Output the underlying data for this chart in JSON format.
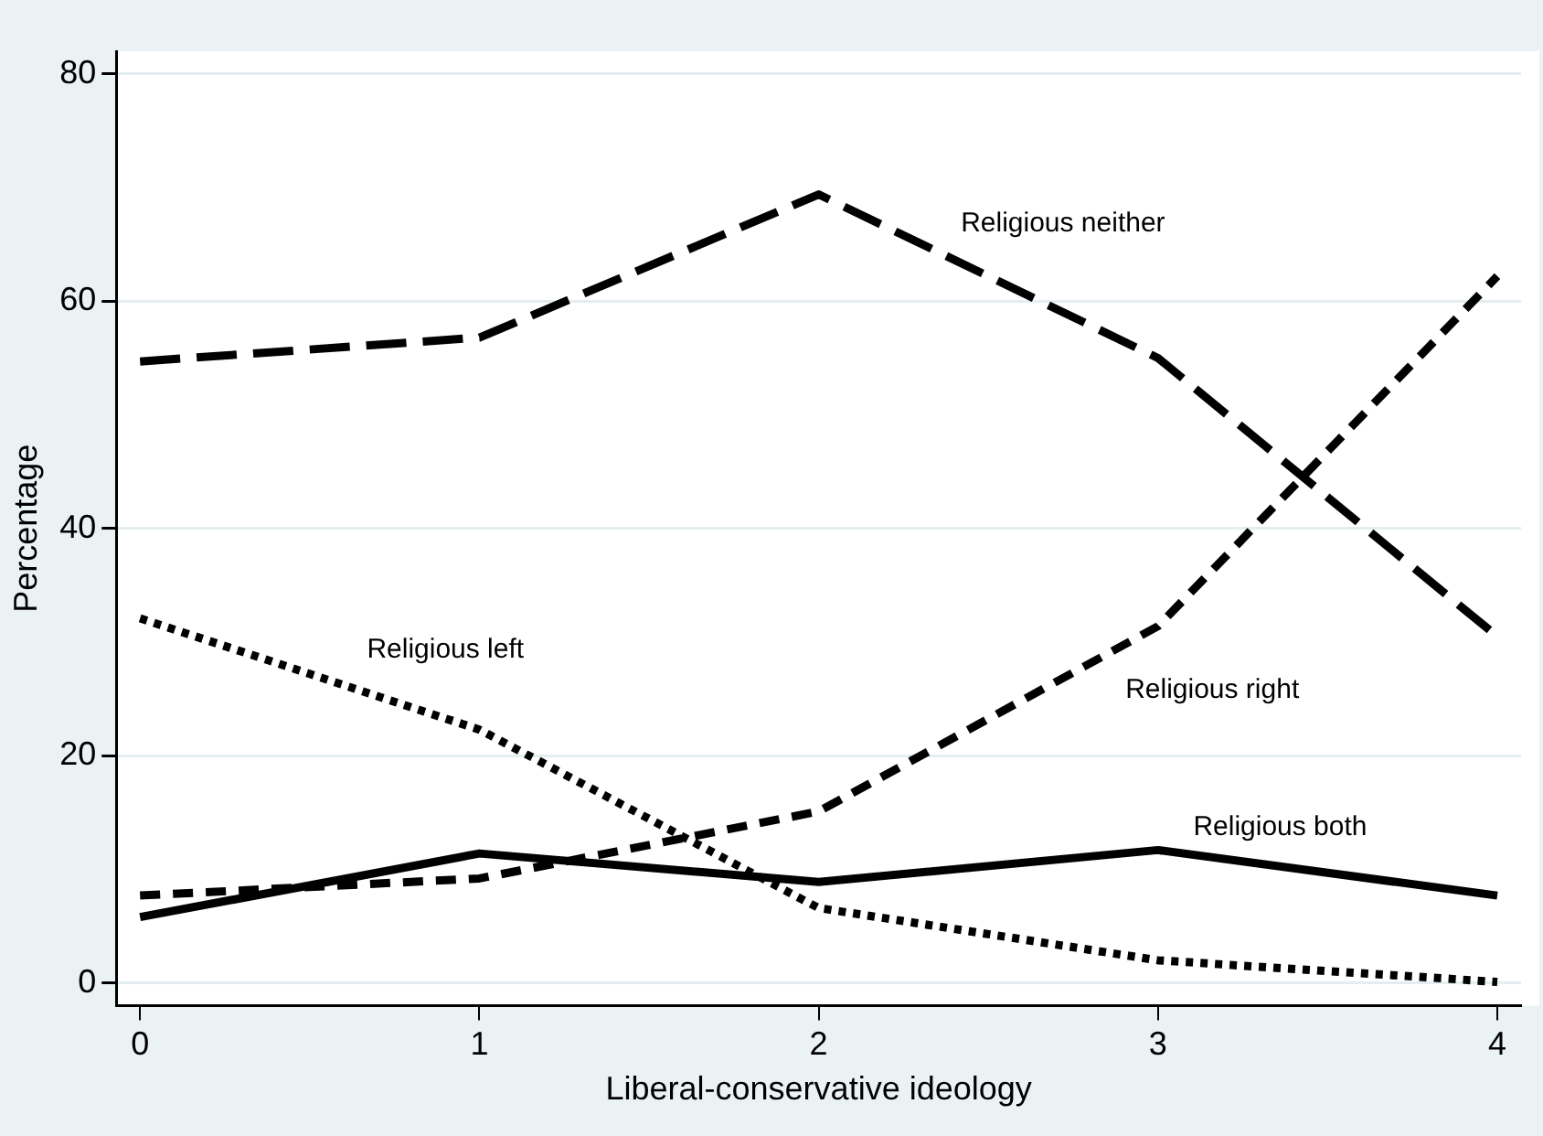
{
  "chart_data": {
    "type": "line",
    "xlabel": "Liberal-conservative ideology",
    "ylabel": "Percentage",
    "x": [
      0,
      1,
      2,
      3,
      4
    ],
    "xlim": [
      -0.07,
      4.07
    ],
    "xticks": [
      0,
      1,
      2,
      3,
      4
    ],
    "ylim": [
      -2,
      82
    ],
    "yticks": [
      0,
      20,
      40,
      60,
      80
    ],
    "grid": "y",
    "legend": false,
    "marker": "none",
    "series": [
      {
        "name": "Religious neither",
        "color": "#000000",
        "line_style": "dashed",
        "values": [
          54.7,
          56.8,
          69.4,
          55.0,
          30.5
        ]
      },
      {
        "name": "Religious right",
        "color": "#000000",
        "line_style": "dashed",
        "values": [
          7.7,
          9.2,
          15.1,
          31.4,
          62.2
        ]
      },
      {
        "name": "Religious left",
        "color": "#000000",
        "line_style": "dotted",
        "values": [
          32.1,
          22.3,
          6.6,
          2.0,
          0.1
        ]
      },
      {
        "name": "Religious both",
        "color": "#000000",
        "line_style": "solid",
        "values": [
          5.8,
          11.4,
          8.9,
          11.7,
          7.7
        ]
      }
    ]
  }
}
